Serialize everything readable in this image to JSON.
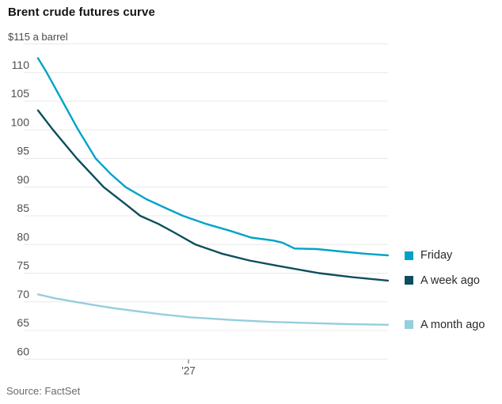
{
  "title": "Brent crude futures curve",
  "unit_label": "$115 a barrel",
  "source": "Source: FactSet",
  "colors": {
    "friday": "#00a3c7",
    "week_ago": "#0d4e5d",
    "month_ago": "#95cedd",
    "grid": "#e8e8e8",
    "axis_text": "#4f4f4f",
    "tick_mark": "#555555",
    "title_text": "#141414",
    "legend_text": "#2b2b2b",
    "source_text": "#6b6b6b",
    "background": "#ffffff"
  },
  "y_axis": {
    "top_label_value": 115,
    "ticks": [
      110,
      105,
      100,
      95,
      90,
      85,
      80,
      75,
      70,
      65,
      60
    ],
    "min": 60,
    "max": 115
  },
  "x_axis": {
    "tick_label": "'27",
    "tick_fraction": 0.43
  },
  "legend": [
    {
      "id": "friday",
      "label": "Friday",
      "color": "#00a3c7",
      "anchor_value": 78.1
    },
    {
      "id": "week-ago",
      "label": "A week ago",
      "color": "#0d4e5d",
      "anchor_value": 73.7
    },
    {
      "id": "month-ago",
      "label": "A month ago",
      "color": "#95cedd",
      "anchor_value": 66.0
    }
  ],
  "chart_data": {
    "type": "line",
    "title": "Brent crude futures curve",
    "xlabel": "Futures delivery month (only labeled tick: '27)",
    "ylabel": "$ a barrel",
    "ylim": [
      60,
      115
    ],
    "grid": "horizontal",
    "legend_position": "right",
    "x_note": "x given as fraction 0-1 of the plotted curve span; '27 tick sits at fraction 0.43",
    "series": [
      {
        "id": "friday",
        "name": "Friday",
        "color": "#00a3c7",
        "points": [
          [
            0,
            112.5
          ],
          [
            0.025,
            110
          ],
          [
            0.07,
            105
          ],
          [
            0.115,
            100
          ],
          [
            0.165,
            95
          ],
          [
            0.208,
            92.3
          ],
          [
            0.251,
            90
          ],
          [
            0.31,
            87.9
          ],
          [
            0.367,
            86.3
          ],
          [
            0.414,
            85
          ],
          [
            0.48,
            83.6
          ],
          [
            0.548,
            82.4
          ],
          [
            0.609,
            81.2
          ],
          [
            0.672,
            80.7
          ],
          [
            0.699,
            80.3
          ],
          [
            0.733,
            79.3
          ],
          [
            0.796,
            79.2
          ],
          [
            0.864,
            78.8
          ],
          [
            0.932,
            78.4
          ],
          [
            1,
            78.1
          ]
        ]
      },
      {
        "id": "week-ago",
        "name": "A week ago",
        "color": "#0d4e5d",
        "points": [
          [
            0,
            103.4
          ],
          [
            0.043,
            100
          ],
          [
            0.111,
            95
          ],
          [
            0.188,
            90
          ],
          [
            0.253,
            86.9
          ],
          [
            0.292,
            85
          ],
          [
            0.344,
            83.6
          ],
          [
            0.389,
            82.1
          ],
          [
            0.45,
            80
          ],
          [
            0.525,
            78.4
          ],
          [
            0.604,
            77.2
          ],
          [
            0.683,
            76.3
          ],
          [
            0.803,
            75
          ],
          [
            0.898,
            74.3
          ],
          [
            1,
            73.7
          ]
        ]
      },
      {
        "id": "month-ago",
        "name": "A month ago",
        "color": "#95cedd",
        "points": [
          [
            0,
            71.3
          ],
          [
            0.05,
            70.6
          ],
          [
            0.106,
            70
          ],
          [
            0.163,
            69.4
          ],
          [
            0.215,
            68.9
          ],
          [
            0.276,
            68.4
          ],
          [
            0.355,
            67.8
          ],
          [
            0.434,
            67.3
          ],
          [
            0.548,
            66.85
          ],
          [
            0.661,
            66.5
          ],
          [
            0.774,
            66.3
          ],
          [
            0.887,
            66.1
          ],
          [
            1,
            66
          ]
        ]
      }
    ]
  }
}
